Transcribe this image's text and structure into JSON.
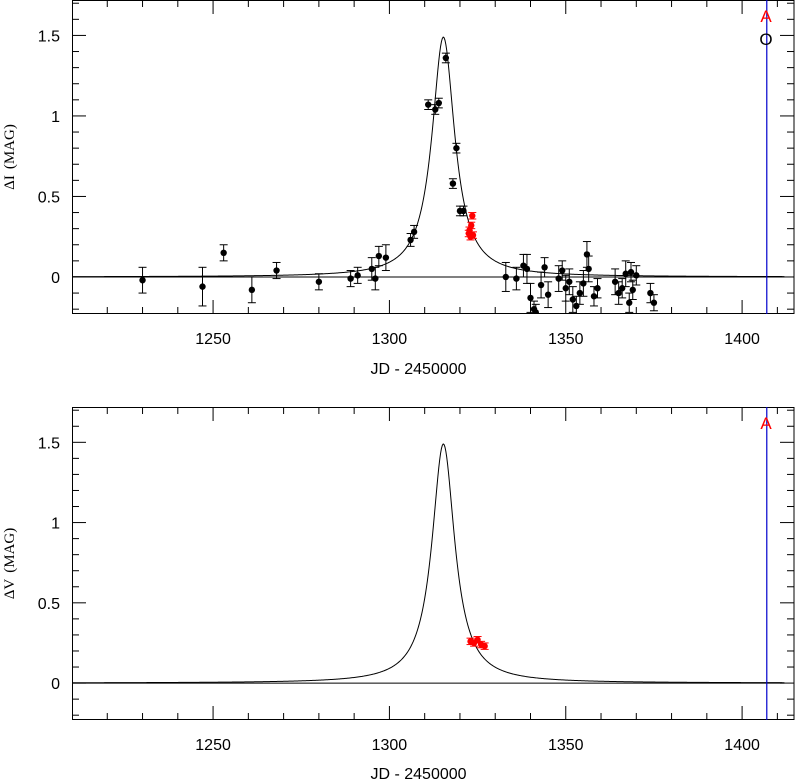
{
  "colors": {
    "axis": "#000000",
    "model_curve": "#000000",
    "observatory_O": "#000000",
    "observatory_A": "#ff0000",
    "vertical_marker": "#0000cc"
  },
  "chart_data": [
    {
      "type": "scatter",
      "panel": "top",
      "xlabel": "JD - 2450000",
      "ylabel_delta": "Δ",
      "ylabel_band": "I",
      "ylabel_unit": "(MAG)",
      "xlim": [
        1210,
        1415
      ],
      "ylim": [
        -0.23,
        1.72
      ],
      "xticks": [
        "1250",
        "1300",
        "1350",
        "1400"
      ],
      "yticks": [
        "0",
        "0.5",
        "1",
        "1.5"
      ],
      "vertical_marker_x": 1407,
      "legend": [
        {
          "label": "A",
          "color": "#ff0000"
        },
        {
          "label": "O",
          "color": "#000000"
        }
      ],
      "model": {
        "peak_x": 1315.3,
        "peak_y": 1.49,
        "x_start": 1210,
        "x_end": 1412
      },
      "series": [
        {
          "name": "O",
          "color": "#000000",
          "points": [
            {
              "x": 1230,
              "y": -0.02,
              "err": 0.08
            },
            {
              "x": 1247,
              "y": -0.06,
              "err": 0.12
            },
            {
              "x": 1253,
              "y": 0.15,
              "err": 0.05
            },
            {
              "x": 1261,
              "y": -0.08,
              "err": 0.08
            },
            {
              "x": 1268,
              "y": 0.04,
              "err": 0.05
            },
            {
              "x": 1280,
              "y": -0.03,
              "err": 0.05
            },
            {
              "x": 1289,
              "y": -0.01,
              "err": 0.05
            },
            {
              "x": 1291,
              "y": 0.01,
              "err": 0.05
            },
            {
              "x": 1295,
              "y": 0.05,
              "err": 0.07
            },
            {
              "x": 1296,
              "y": -0.01,
              "err": 0.07
            },
            {
              "x": 1297,
              "y": 0.13,
              "err": 0.06
            },
            {
              "x": 1299,
              "y": 0.12,
              "err": 0.08
            },
            {
              "x": 1306,
              "y": 0.23,
              "err": 0.04
            },
            {
              "x": 1307,
              "y": 0.28,
              "err": 0.04
            },
            {
              "x": 1311,
              "y": 1.07,
              "err": 0.03
            },
            {
              "x": 1313,
              "y": 1.04,
              "err": 0.03
            },
            {
              "x": 1314,
              "y": 1.08,
              "err": 0.03
            },
            {
              "x": 1316,
              "y": 1.36,
              "err": 0.03
            },
            {
              "x": 1318,
              "y": 0.58,
              "err": 0.03
            },
            {
              "x": 1319,
              "y": 0.8,
              "err": 0.03
            },
            {
              "x": 1320,
              "y": 0.41,
              "err": 0.03
            },
            {
              "x": 1321,
              "y": 0.41,
              "err": 0.03
            },
            {
              "x": 1333,
              "y": 0.0,
              "err": 0.09
            },
            {
              "x": 1336,
              "y": -0.01,
              "err": 0.07
            },
            {
              "x": 1338,
              "y": 0.07,
              "err": 0.07
            },
            {
              "x": 1339,
              "y": 0.05,
              "err": 0.09
            },
            {
              "x": 1340,
              "y": -0.13,
              "err": 0.09
            },
            {
              "x": 1341,
              "y": -0.2,
              "err": 0.05
            },
            {
              "x": 1341.5,
              "y": -0.22,
              "err": 0.05
            },
            {
              "x": 1343,
              "y": -0.05,
              "err": 0.08
            },
            {
              "x": 1344,
              "y": 0.06,
              "err": 0.06
            },
            {
              "x": 1345,
              "y": -0.11,
              "err": 0.08
            },
            {
              "x": 1348,
              "y": -0.01,
              "err": 0.08
            },
            {
              "x": 1349,
              "y": 0.04,
              "err": 0.06
            },
            {
              "x": 1350,
              "y": -0.07,
              "err": 0.08
            },
            {
              "x": 1351,
              "y": -0.03,
              "err": 0.08
            },
            {
              "x": 1352,
              "y": -0.14,
              "err": 0.08
            },
            {
              "x": 1353,
              "y": -0.18,
              "err": 0.06
            },
            {
              "x": 1354,
              "y": -0.1,
              "err": 0.07
            },
            {
              "x": 1355,
              "y": -0.04,
              "err": 0.08
            },
            {
              "x": 1356,
              "y": 0.14,
              "err": 0.08
            },
            {
              "x": 1356.5,
              "y": 0.05,
              "err": 0.08
            },
            {
              "x": 1358,
              "y": -0.12,
              "err": 0.06
            },
            {
              "x": 1359,
              "y": -0.07,
              "err": 0.06
            },
            {
              "x": 1364,
              "y": -0.03,
              "err": 0.08
            },
            {
              "x": 1365,
              "y": -0.1,
              "err": 0.07
            },
            {
              "x": 1366,
              "y": -0.07,
              "err": 0.06
            },
            {
              "x": 1367,
              "y": 0.02,
              "err": 0.08
            },
            {
              "x": 1368,
              "y": -0.16,
              "err": 0.06
            },
            {
              "x": 1368.5,
              "y": 0.03,
              "err": 0.06
            },
            {
              "x": 1369,
              "y": -0.08,
              "err": 0.06
            },
            {
              "x": 1370,
              "y": 0.01,
              "err": 0.06
            },
            {
              "x": 1374,
              "y": -0.1,
              "err": 0.06
            },
            {
              "x": 1375,
              "y": -0.16,
              "err": 0.05
            }
          ]
        },
        {
          "name": "A",
          "color": "#ff0000",
          "points": [
            {
              "x": 1322.5,
              "y": 0.27,
              "err": 0.02
            },
            {
              "x": 1322.7,
              "y": 0.29,
              "err": 0.02
            },
            {
              "x": 1323,
              "y": 0.25,
              "err": 0.02
            },
            {
              "x": 1323.2,
              "y": 0.32,
              "err": 0.02
            },
            {
              "x": 1323.5,
              "y": 0.38,
              "err": 0.02
            },
            {
              "x": 1323.7,
              "y": 0.26,
              "err": 0.02
            }
          ]
        }
      ]
    },
    {
      "type": "scatter",
      "panel": "bottom",
      "xlabel": "JD - 2450000",
      "ylabel_delta": "Δ",
      "ylabel_band": "V",
      "ylabel_unit": "(MAG)",
      "xlim": [
        1210,
        1415
      ],
      "ylim": [
        -0.23,
        1.72
      ],
      "xticks": [
        "1250",
        "1300",
        "1350",
        "1400"
      ],
      "yticks": [
        "0",
        "0.5",
        "1",
        "1.5"
      ],
      "vertical_marker_x": 1407,
      "legend": [
        {
          "label": "A",
          "color": "#ff0000"
        }
      ],
      "model": {
        "peak_x": 1315.3,
        "peak_y": 1.49,
        "x_start": 1210,
        "x_end": 1412
      },
      "series": [
        {
          "name": "A",
          "color": "#ff0000",
          "points": [
            {
              "x": 1323,
              "y": 0.26,
              "err": 0.02
            },
            {
              "x": 1324,
              "y": 0.25,
              "err": 0.02
            },
            {
              "x": 1325,
              "y": 0.27,
              "err": 0.02
            },
            {
              "x": 1326,
              "y": 0.24,
              "err": 0.02
            },
            {
              "x": 1327,
              "y": 0.23,
              "err": 0.02
            }
          ]
        }
      ]
    }
  ]
}
